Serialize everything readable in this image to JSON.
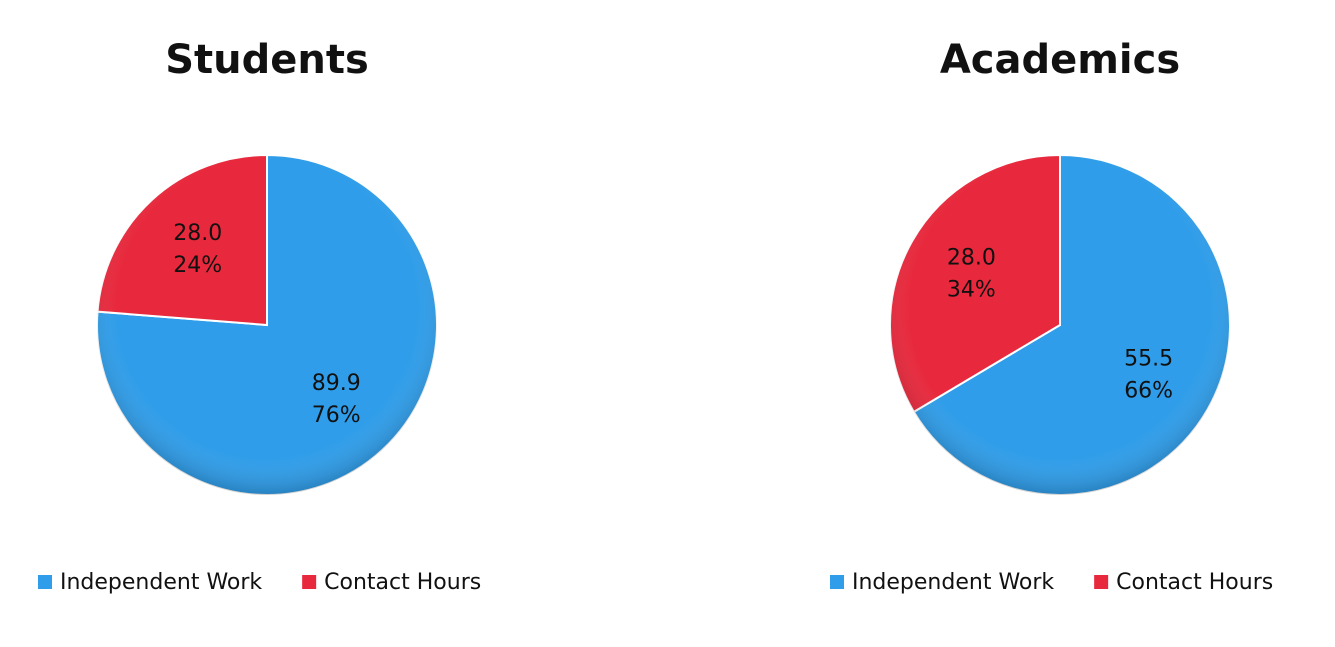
{
  "chart_data": [
    {
      "type": "pie",
      "title": "Students",
      "categories": [
        "Independent Work",
        "Contact Hours"
      ],
      "values": [
        89.9,
        28.0
      ],
      "value_labels": [
        "89.9",
        "28.0"
      ],
      "percent_labels": [
        "76%",
        "24%"
      ],
      "colors": [
        "#2f9de9",
        "#e8283c"
      ]
    },
    {
      "type": "pie",
      "title": "Academics",
      "categories": [
        "Independent Work",
        "Contact Hours"
      ],
      "values": [
        55.5,
        28.0
      ],
      "value_labels": [
        "55.5",
        "28.0"
      ],
      "percent_labels": [
        "66%",
        "34%"
      ],
      "colors": [
        "#2f9de9",
        "#e8283c"
      ]
    }
  ]
}
